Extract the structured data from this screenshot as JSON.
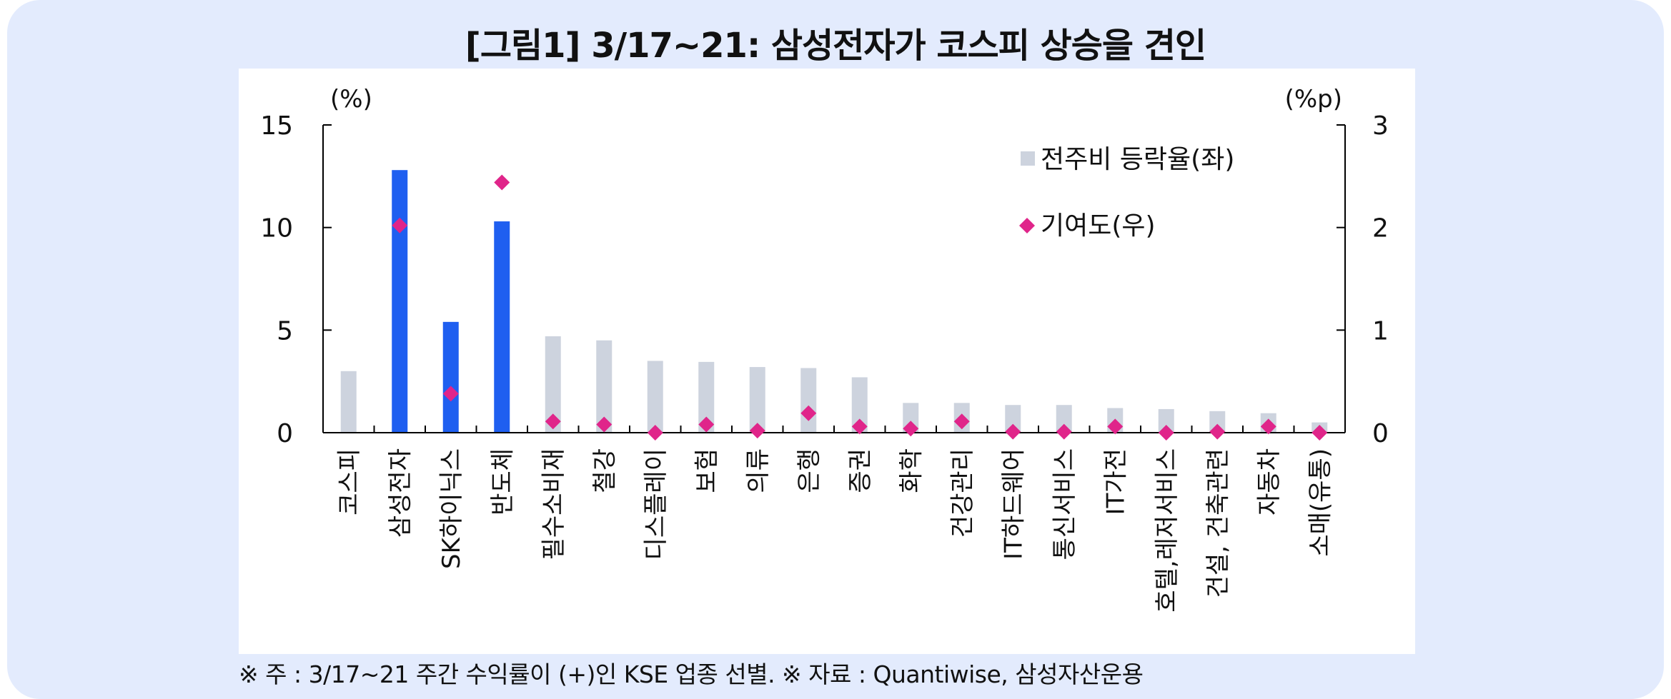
{
  "title": "[그림1] 3/17~21: 삼성전자가 코스피 상승을 견인",
  "footnote": "※ 주 : 3/17~21 주간 수익률이 (+)인 KSE 업종 선별. ※ 자료 : Quantiwise, 삼성자산운용",
  "colors": {
    "background": "#e3ebfd",
    "bar_default": "#cdd3de",
    "bar_highlight": "#1f5ff0",
    "marker": "#e0258a"
  },
  "chart_data": {
    "type": "bar",
    "left_axis_unit": "(%)",
    "right_axis_unit": "(%p)",
    "ylim_left": [
      0,
      15
    ],
    "ylim_right": [
      0,
      3
    ],
    "yticks_left": [
      "0",
      "5",
      "10",
      "15"
    ],
    "yticks_right": [
      "0",
      "1",
      "2",
      "3"
    ],
    "grid": false,
    "legend_position": "top-right",
    "categories": [
      "코스피",
      "삼성전자",
      "SK하이닉스",
      "반도체",
      "필수소비재",
      "철강",
      "디스플레이",
      "보험",
      "의류",
      "은행",
      "증권",
      "화학",
      "건강관리",
      "IT하드웨어",
      "통신서비스",
      "IT가전",
      "호텔,레저서비스",
      "건설, 건축관련",
      "자동차",
      "소매(유통)"
    ],
    "highlighted": [
      "삼성전자",
      "SK하이닉스",
      "반도체"
    ],
    "series": [
      {
        "name": "전주비 등락율(좌)",
        "type": "bar",
        "axis": "left",
        "values": [
          3.0,
          12.8,
          5.4,
          10.3,
          4.7,
          4.5,
          3.5,
          3.45,
          3.2,
          3.15,
          2.7,
          1.45,
          1.45,
          1.35,
          1.35,
          1.2,
          1.15,
          1.05,
          0.95,
          0.5
        ]
      },
      {
        "name": "기여도(우)",
        "type": "scatter",
        "axis": "right",
        "values": [
          null,
          2.02,
          0.38,
          2.44,
          0.11,
          0.08,
          0.0,
          0.08,
          0.02,
          0.19,
          0.06,
          0.04,
          0.11,
          0.01,
          0.01,
          0.06,
          0.0,
          0.01,
          0.06,
          0.0
        ]
      }
    ]
  }
}
